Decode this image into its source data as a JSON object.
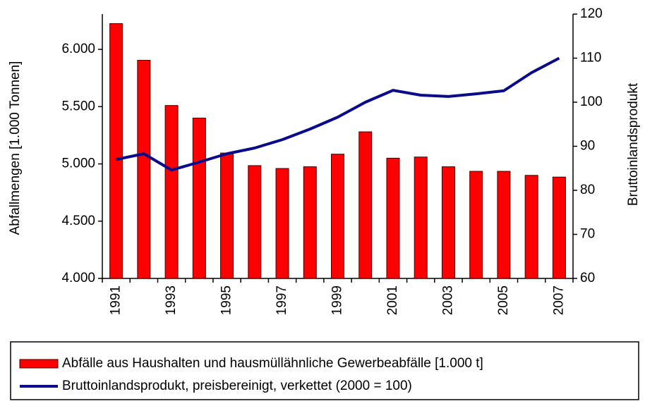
{
  "chart_data": {
    "type": "bar-line",
    "categories": [
      "1991",
      null,
      "1993",
      null,
      "1995",
      null,
      "1997",
      null,
      "1999",
      null,
      "2001",
      null,
      "2003",
      null,
      "2005",
      null,
      "2007"
    ],
    "series": [
      {
        "name": "Abfälle aus Haushalten und hausmüllähnliche Gewerbeabfälle [1.000 t]",
        "type": "bar",
        "color": "#ff0000",
        "axis": "y",
        "values": [
          6225,
          5905,
          5510,
          5400,
          5095,
          4985,
          4960,
          4975,
          5085,
          5280,
          5050,
          5060,
          4975,
          4935,
          4935,
          4900,
          4885
        ]
      },
      {
        "name": "Bruttoinlandsprodukt, preisbereinigt, verkettet (2000 = 100)",
        "type": "line",
        "color": "#0a0a8c",
        "axis": "y2",
        "values": [
          87,
          88.3,
          84.6,
          86.4,
          88.3,
          89.6,
          91.5,
          93.9,
          96.6,
          100,
          102.7,
          101.6,
          101.3,
          101.9,
          102.6,
          106.7,
          110
        ]
      }
    ],
    "y_label": "Abfallmengen [1.000 Tonnen]",
    "y2_label": "Bruttoinlandsprodukt",
    "ylim": [
      4000,
      6308
    ],
    "yticks": [
      {
        "value": 4000,
        "label": "4.000"
      },
      {
        "value": 4500,
        "label": "4.500"
      },
      {
        "value": 5000,
        "label": "5.000"
      },
      {
        "value": 5500,
        "label": "5.500"
      },
      {
        "value": 6000,
        "label": "6.000"
      }
    ],
    "y2lim": [
      60,
      120
    ],
    "y2ticks": [
      60,
      70,
      80,
      90,
      100,
      110,
      120
    ],
    "grid": false,
    "legend": "bottom"
  }
}
